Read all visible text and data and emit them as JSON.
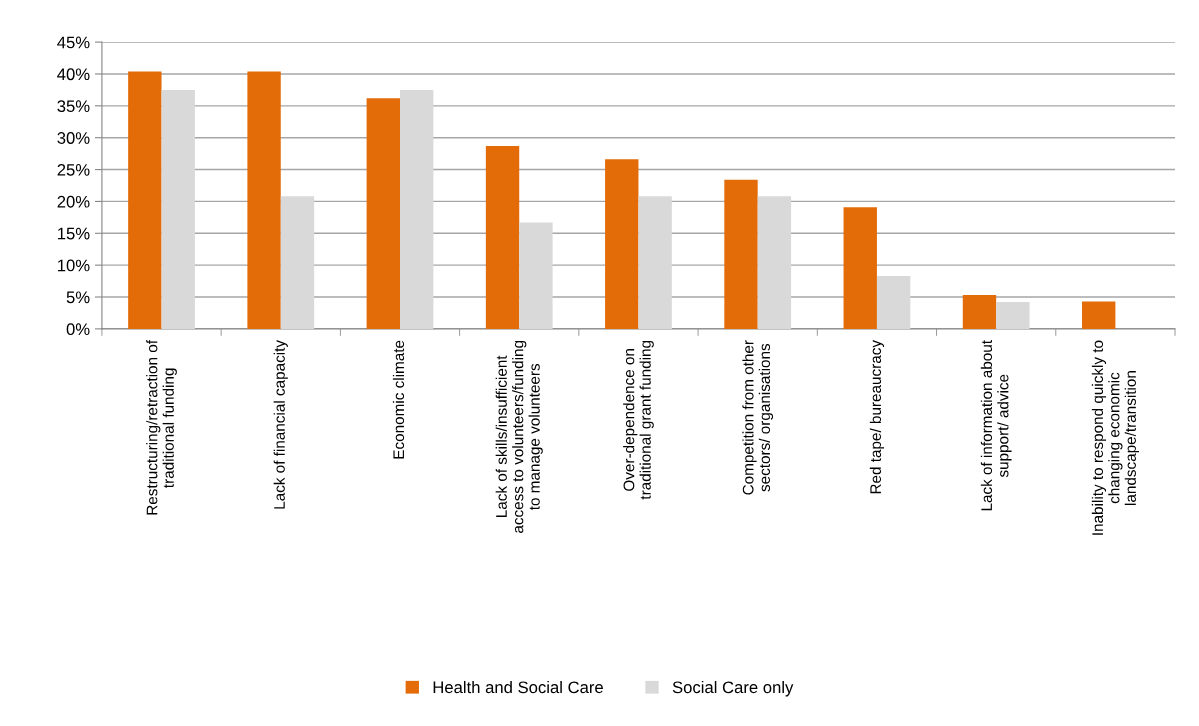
{
  "chart_data": {
    "type": "bar",
    "categories": [
      "Restructuring/retraction of\ntraditional funding",
      "Lack of financial capacity",
      "Economic climate",
      "Lack of skills/insufficient\naccess to volunteers/funding\nto manage volunteers",
      "Over-dependence on\ntraditional grant funding",
      "Competition from other\nsectors/ organisations",
      "Red tape/ bureaucracy",
      "Lack of information about\nsupport/ advice",
      "Inability to respond quickly to\nchanging economic\nlandscape/transition"
    ],
    "series": [
      {
        "name": "Health and Social Care",
        "color": "#e36c09",
        "values": [
          40.4,
          40.4,
          36.2,
          28.7,
          26.6,
          23.4,
          19.1,
          5.3,
          4.3
        ]
      },
      {
        "name": "Social Care only",
        "color": "#d9d9d9",
        "values": [
          37.5,
          20.8,
          37.5,
          16.7,
          20.8,
          20.8,
          8.3,
          4.2,
          0
        ]
      }
    ],
    "ylim": [
      0,
      45
    ],
    "yticks": [
      {
        "value": 0,
        "label": "0%"
      },
      {
        "value": 5,
        "label": "5%"
      },
      {
        "value": 10,
        "label": "10%"
      },
      {
        "value": 15,
        "label": "15%"
      },
      {
        "value": 20,
        "label": "20%"
      },
      {
        "value": 25,
        "label": "25%"
      },
      {
        "value": 30,
        "label": "30%"
      },
      {
        "value": 35,
        "label": "35%"
      },
      {
        "value": 40,
        "label": "40%"
      },
      {
        "value": 45,
        "label": "45%"
      }
    ],
    "grid": "y",
    "legend": "bottom"
  }
}
